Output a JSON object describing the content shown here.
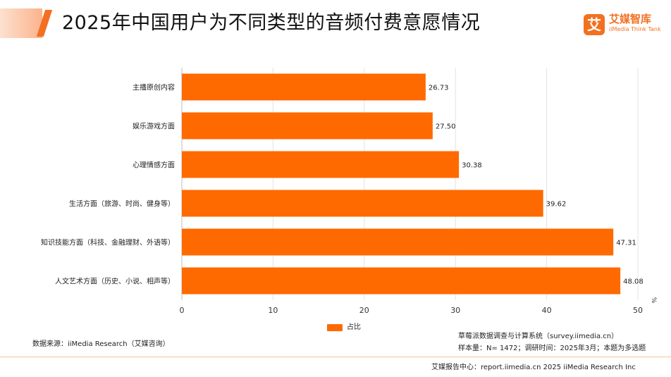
{
  "header": {
    "title": "2025年中国用户为不同类型的音频付费意愿情况"
  },
  "logo": {
    "mark": "艾",
    "cn": "艾媒智库",
    "en": "iiMedia Think Tank"
  },
  "chart_data": {
    "type": "bar",
    "orientation": "horizontal",
    "categories": [
      "主播原创内容",
      "娱乐游戏方面",
      "心理情感方面",
      "生活方面（旅游、时尚、健身等）",
      "知识技能方面（科技、金融理财、外语等）",
      "人文艺术方面（历史、小说、相声等）"
    ],
    "series": [
      {
        "name": "占比",
        "values": [
          26.73,
          27.5,
          30.38,
          39.62,
          47.31,
          48.08
        ],
        "color": "#ff6a00"
      }
    ],
    "value_labels": [
      "26.73",
      "27.50",
      "30.38",
      "39.62",
      "47.31",
      "48.08"
    ],
    "xlim": [
      0,
      50
    ],
    "xticks": [
      0,
      10,
      20,
      30,
      40,
      50
    ],
    "unit": "%",
    "grid": true,
    "legend": "bottom-center"
  },
  "source": "数据来源：iiMedia Research（艾媒咨询）",
  "notes": {
    "system": "草莓派数据调查与计算系统（survey.iimedia.cn）",
    "sample": "样本量：N= 1472；调研时间：2025年3月；本题为多选题"
  },
  "footer": "艾媒报告中心：report.iimedia.cn   2025 iiMedia Research Inc"
}
